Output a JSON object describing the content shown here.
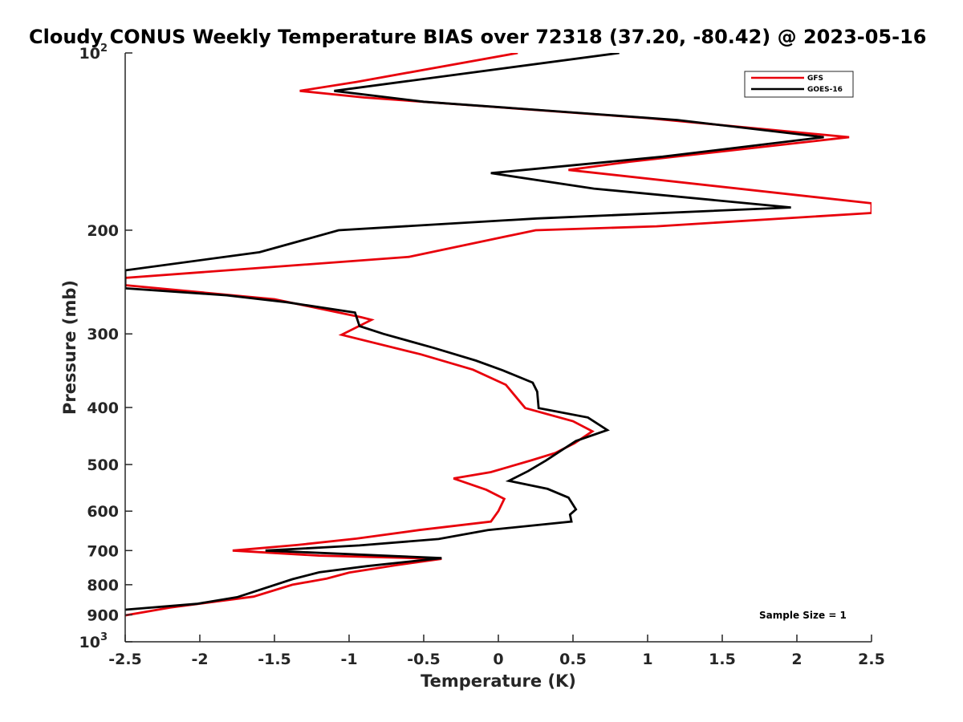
{
  "chart_data": {
    "type": "line",
    "title": "Cloudy CONUS Weekly Temperature BIAS over 72318 (37.20, -80.42) @ 2023-05-16",
    "xlabel": "Temperature (K)",
    "ylabel": "Pressure (mb)",
    "xlim": [
      -2.5,
      2.5
    ],
    "ylim": [
      100,
      1000
    ],
    "yscale": "log",
    "yreversed": true,
    "grid": false,
    "legend_position": "top-right",
    "x_ticks": [
      {
        "value": -2.5,
        "label": "-2.5"
      },
      {
        "value": -2,
        "label": "-2"
      },
      {
        "value": -1.5,
        "label": "-1.5"
      },
      {
        "value": -1,
        "label": "-1"
      },
      {
        "value": -0.5,
        "label": "-0.5"
      },
      {
        "value": 0,
        "label": "0"
      },
      {
        "value": 0.5,
        "label": "0.5"
      },
      {
        "value": 1,
        "label": "1"
      },
      {
        "value": 1.5,
        "label": "1.5"
      },
      {
        "value": 2,
        "label": "2"
      },
      {
        "value": 2.5,
        "label": "2.5"
      }
    ],
    "y_ticks": [
      {
        "value": 100,
        "label": "10",
        "exponent": "2"
      },
      {
        "value": 200,
        "label": "200"
      },
      {
        "value": 300,
        "label": "300"
      },
      {
        "value": 400,
        "label": "400"
      },
      {
        "value": 500,
        "label": "500"
      },
      {
        "value": 600,
        "label": "600"
      },
      {
        "value": 700,
        "label": "700"
      },
      {
        "value": 800,
        "label": "800"
      },
      {
        "value": 900,
        "label": "900"
      },
      {
        "value": 1000,
        "label": "10",
        "exponent": "3"
      }
    ],
    "annotation": "Sample Size = 1",
    "series": [
      {
        "name": "GFS",
        "color": "#e8000b",
        "points": [
          [
            0.13,
            100
          ],
          [
            -0.95,
            112
          ],
          [
            -1.33,
            116
          ],
          [
            -0.9,
            119
          ],
          [
            1.0,
            129
          ],
          [
            2.35,
            139
          ],
          [
            0.88,
            153
          ],
          [
            0.47,
            158
          ],
          [
            2.5,
            180
          ],
          [
            2.5,
            187
          ],
          [
            1.06,
            197
          ],
          [
            0.25,
            200
          ],
          [
            -0.6,
            222
          ],
          [
            -2.5,
            241
          ],
          [
            -2.5,
            248
          ],
          [
            -1.5,
            262
          ],
          [
            -0.92,
            281
          ],
          [
            -0.85,
            284
          ],
          [
            -1.05,
            301
          ],
          [
            -0.52,
            325
          ],
          [
            -0.17,
            345
          ],
          [
            0.05,
            366
          ],
          [
            0.18,
            401
          ],
          [
            0.5,
            422
          ],
          [
            0.63,
            439
          ],
          [
            0.51,
            460
          ],
          [
            0.38,
            478
          ],
          [
            0.22,
            492
          ],
          [
            -0.05,
            515
          ],
          [
            -0.3,
            528
          ],
          [
            -0.08,
            552
          ],
          [
            0.04,
            572
          ],
          [
            0.0,
            600
          ],
          [
            -0.05,
            625
          ],
          [
            -0.53,
            646
          ],
          [
            -0.95,
            668
          ],
          [
            -1.35,
            685
          ],
          [
            -1.78,
            700
          ],
          [
            -1.2,
            714
          ],
          [
            -0.38,
            723
          ],
          [
            -0.68,
            741
          ],
          [
            -1.0,
            763
          ],
          [
            -1.15,
            781
          ],
          [
            -1.38,
            800
          ],
          [
            -1.64,
            838
          ],
          [
            -2.2,
            875
          ],
          [
            -2.5,
            902
          ]
        ]
      },
      {
        "name": "GOES-16",
        "color": "#000000",
        "points": [
          [
            0.81,
            100
          ],
          [
            -1.1,
            116
          ],
          [
            -0.5,
            121
          ],
          [
            1.2,
            130
          ],
          [
            2.18,
            139
          ],
          [
            1.1,
            150
          ],
          [
            -0.05,
            160
          ],
          [
            0.64,
            170
          ],
          [
            1.96,
            183
          ],
          [
            0.26,
            191
          ],
          [
            -1.07,
            200
          ],
          [
            -1.6,
            218
          ],
          [
            -2.5,
            234
          ],
          [
            -2.5,
            251
          ],
          [
            -1.82,
            258
          ],
          [
            -1.42,
            265
          ],
          [
            -0.96,
            276
          ],
          [
            -0.93,
            291
          ],
          [
            -0.77,
            300
          ],
          [
            -0.43,
            317
          ],
          [
            -0.15,
            333
          ],
          [
            0.03,
            346
          ],
          [
            0.23,
            363
          ],
          [
            0.26,
            376
          ],
          [
            0.27,
            401
          ],
          [
            0.6,
            416
          ],
          [
            0.73,
            437
          ],
          [
            0.52,
            456
          ],
          [
            0.44,
            470
          ],
          [
            0.32,
            492
          ],
          [
            0.2,
            513
          ],
          [
            0.07,
            533
          ],
          [
            0.33,
            550
          ],
          [
            0.47,
            569
          ],
          [
            0.52,
            596
          ],
          [
            0.48,
            608
          ],
          [
            0.49,
            625
          ],
          [
            -0.07,
            646
          ],
          [
            -0.4,
            669
          ],
          [
            -0.93,
            686
          ],
          [
            -1.56,
            700
          ],
          [
            -0.38,
            721
          ],
          [
            -0.88,
            744
          ],
          [
            -1.2,
            762
          ],
          [
            -1.38,
            783
          ],
          [
            -1.75,
            840
          ],
          [
            -2.02,
            862
          ],
          [
            -2.5,
            882
          ]
        ]
      }
    ]
  }
}
